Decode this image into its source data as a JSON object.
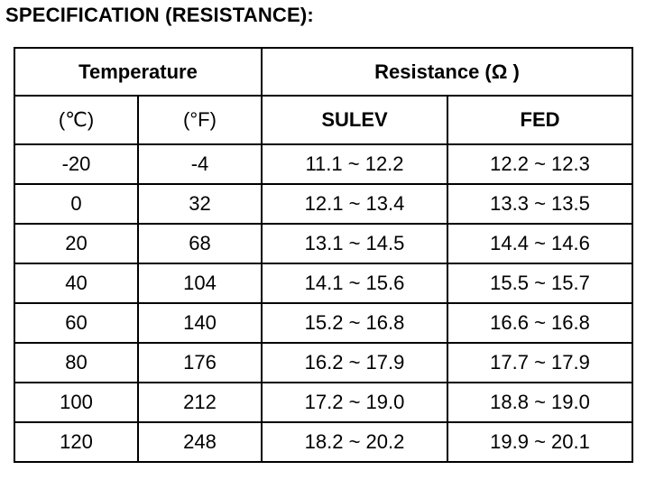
{
  "title": "SPECIFICATION (RESISTANCE):",
  "table": {
    "header": [
      "Temperature",
      "Resistance (Ω )"
    ],
    "subheader": [
      "(℃)",
      "(°F)",
      "SULEV",
      "FED"
    ],
    "rows": [
      [
        -20,
        -4,
        "11.1 ~ 12.2",
        "12.2 ~ 12.3"
      ],
      [
        0,
        32,
        "12.1 ~ 13.4",
        "13.3 ~ 13.5"
      ],
      [
        20,
        68,
        "13.1 ~ 14.5",
        "14.4 ~ 14.6"
      ],
      [
        40,
        104,
        "14.1 ~ 15.6",
        "15.5 ~ 15.7"
      ],
      [
        60,
        140,
        "15.2 ~ 16.8",
        "16.6 ~ 16.8"
      ],
      [
        80,
        176,
        "16.2 ~ 17.9",
        "17.7 ~ 17.9"
      ],
      [
        100,
        212,
        "17.2 ~ 19.0",
        "18.8 ~ 19.0"
      ],
      [
        120,
        248,
        "18.2 ~ 20.2",
        "19.9 ~ 20.1"
      ]
    ]
  }
}
